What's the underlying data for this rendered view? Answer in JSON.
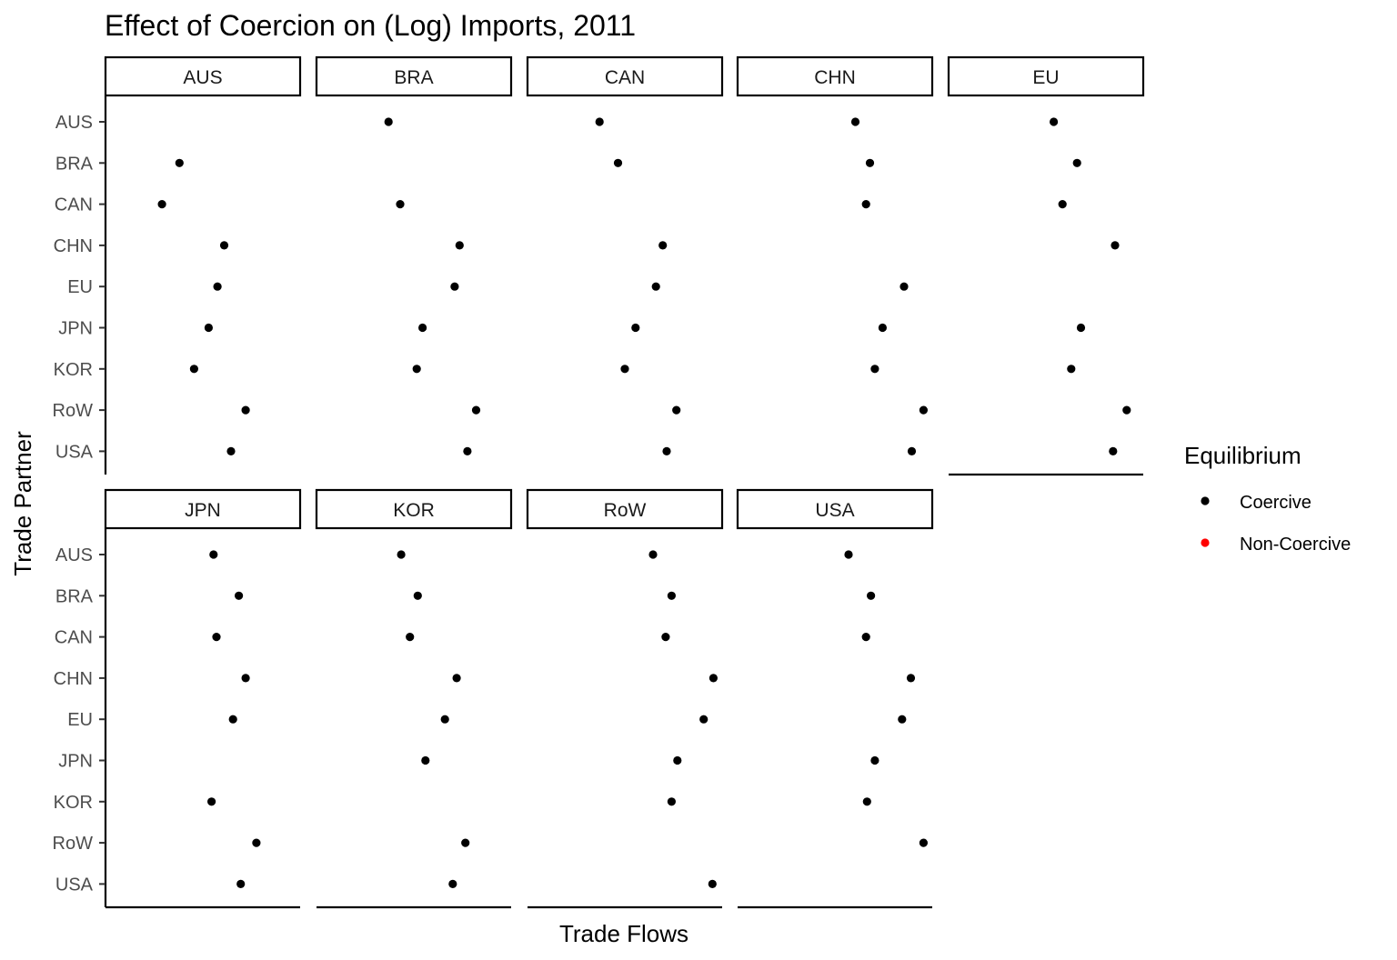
{
  "chart_data": {
    "type": "scatter",
    "title": "Effect of Coercion on (Log) Imports, 2011",
    "xlabel": "Trade Flows",
    "ylabel": "Trade Partner",
    "xlim": [
      0,
      1
    ],
    "categories": [
      "AUS",
      "BRA",
      "CAN",
      "CHN",
      "EU",
      "JPN",
      "KOR",
      "RoW",
      "USA"
    ],
    "grid": false,
    "legend": {
      "title": "Equilibrium",
      "position": "right",
      "entries": [
        {
          "label": "Coercive",
          "color": "#000000"
        },
        {
          "label": "Non-Coercive",
          "color": "#ff0000"
        }
      ]
    },
    "panels": [
      {
        "name": "AUS",
        "series": [
          {
            "name": "Coercive",
            "points": [
              {
                "y": "BRA",
                "x": 0.38
              },
              {
                "y": "CAN",
                "x": 0.29
              },
              {
                "y": "CHN",
                "x": 0.61
              },
              {
                "y": "EU",
                "x": 0.575
              },
              {
                "y": "JPN",
                "x": 0.53
              },
              {
                "y": "KOR",
                "x": 0.455
              },
              {
                "y": "RoW",
                "x": 0.72
              },
              {
                "y": "USA",
                "x": 0.645
              }
            ]
          }
        ]
      },
      {
        "name": "BRA",
        "series": [
          {
            "name": "Coercive",
            "points": [
              {
                "y": "AUS",
                "x": 0.37
              },
              {
                "y": "CAN",
                "x": 0.43
              },
              {
                "y": "CHN",
                "x": 0.735
              },
              {
                "y": "EU",
                "x": 0.71
              },
              {
                "y": "JPN",
                "x": 0.545
              },
              {
                "y": "KOR",
                "x": 0.515
              },
              {
                "y": "RoW",
                "x": 0.82
              },
              {
                "y": "USA",
                "x": 0.775
              }
            ]
          }
        ]
      },
      {
        "name": "CAN",
        "series": [
          {
            "name": "Coercive",
            "points": [
              {
                "y": "AUS",
                "x": 0.37
              },
              {
                "y": "BRA",
                "x": 0.465
              },
              {
                "y": "CHN",
                "x": 0.695
              },
              {
                "y": "EU",
                "x": 0.66
              },
              {
                "y": "JPN",
                "x": 0.555
              },
              {
                "y": "KOR",
                "x": 0.5
              },
              {
                "y": "RoW",
                "x": 0.765
              },
              {
                "y": "USA",
                "x": 0.715
              }
            ]
          }
        ]
      },
      {
        "name": "CHN",
        "series": [
          {
            "name": "Coercive",
            "points": [
              {
                "y": "AUS",
                "x": 0.605
              },
              {
                "y": "BRA",
                "x": 0.68
              },
              {
                "y": "CAN",
                "x": 0.66
              },
              {
                "y": "EU",
                "x": 0.855
              },
              {
                "y": "JPN",
                "x": 0.745
              },
              {
                "y": "KOR",
                "x": 0.705
              },
              {
                "y": "RoW",
                "x": 0.955
              },
              {
                "y": "USA",
                "x": 0.895
              }
            ]
          }
        ]
      },
      {
        "name": "EU",
        "series": [
          {
            "name": "Coercive",
            "points": [
              {
                "y": "AUS",
                "x": 0.54
              },
              {
                "y": "BRA",
                "x": 0.66
              },
              {
                "y": "CAN",
                "x": 0.585
              },
              {
                "y": "CHN",
                "x": 0.855
              },
              {
                "y": "JPN",
                "x": 0.68
              },
              {
                "y": "KOR",
                "x": 0.63
              },
              {
                "y": "RoW",
                "x": 0.915
              },
              {
                "y": "USA",
                "x": 0.845
              }
            ]
          }
        ]
      },
      {
        "name": "JPN",
        "series": [
          {
            "name": "Coercive",
            "points": [
              {
                "y": "AUS",
                "x": 0.555
              },
              {
                "y": "BRA",
                "x": 0.685
              },
              {
                "y": "CAN",
                "x": 0.57
              },
              {
                "y": "CHN",
                "x": 0.72
              },
              {
                "y": "EU",
                "x": 0.655
              },
              {
                "y": "KOR",
                "x": 0.545
              },
              {
                "y": "RoW",
                "x": 0.775
              },
              {
                "y": "USA",
                "x": 0.695
              }
            ]
          }
        ]
      },
      {
        "name": "KOR",
        "series": [
          {
            "name": "Coercive",
            "points": [
              {
                "y": "AUS",
                "x": 0.435
              },
              {
                "y": "BRA",
                "x": 0.52
              },
              {
                "y": "CAN",
                "x": 0.48
              },
              {
                "y": "CHN",
                "x": 0.72
              },
              {
                "y": "EU",
                "x": 0.66
              },
              {
                "y": "JPN",
                "x": 0.56
              },
              {
                "y": "RoW",
                "x": 0.765
              },
              {
                "y": "USA",
                "x": 0.7
              }
            ]
          }
        ]
      },
      {
        "name": "RoW",
        "series": [
          {
            "name": "Coercive",
            "points": [
              {
                "y": "AUS",
                "x": 0.645
              },
              {
                "y": "BRA",
                "x": 0.74
              },
              {
                "y": "CAN",
                "x": 0.71
              },
              {
                "y": "CHN",
                "x": 0.955
              },
              {
                "y": "EU",
                "x": 0.905
              },
              {
                "y": "JPN",
                "x": 0.77
              },
              {
                "y": "KOR",
                "x": 0.74
              },
              {
                "y": "USA",
                "x": 0.95
              }
            ]
          }
        ]
      },
      {
        "name": "USA",
        "series": [
          {
            "name": "Coercive",
            "points": [
              {
                "y": "AUS",
                "x": 0.57
              },
              {
                "y": "BRA",
                "x": 0.685
              },
              {
                "y": "CAN",
                "x": 0.66
              },
              {
                "y": "CHN",
                "x": 0.89
              },
              {
                "y": "EU",
                "x": 0.845
              },
              {
                "y": "JPN",
                "x": 0.705
              },
              {
                "y": "KOR",
                "x": 0.665
              },
              {
                "y": "RoW",
                "x": 0.955
              }
            ]
          }
        ]
      }
    ]
  }
}
